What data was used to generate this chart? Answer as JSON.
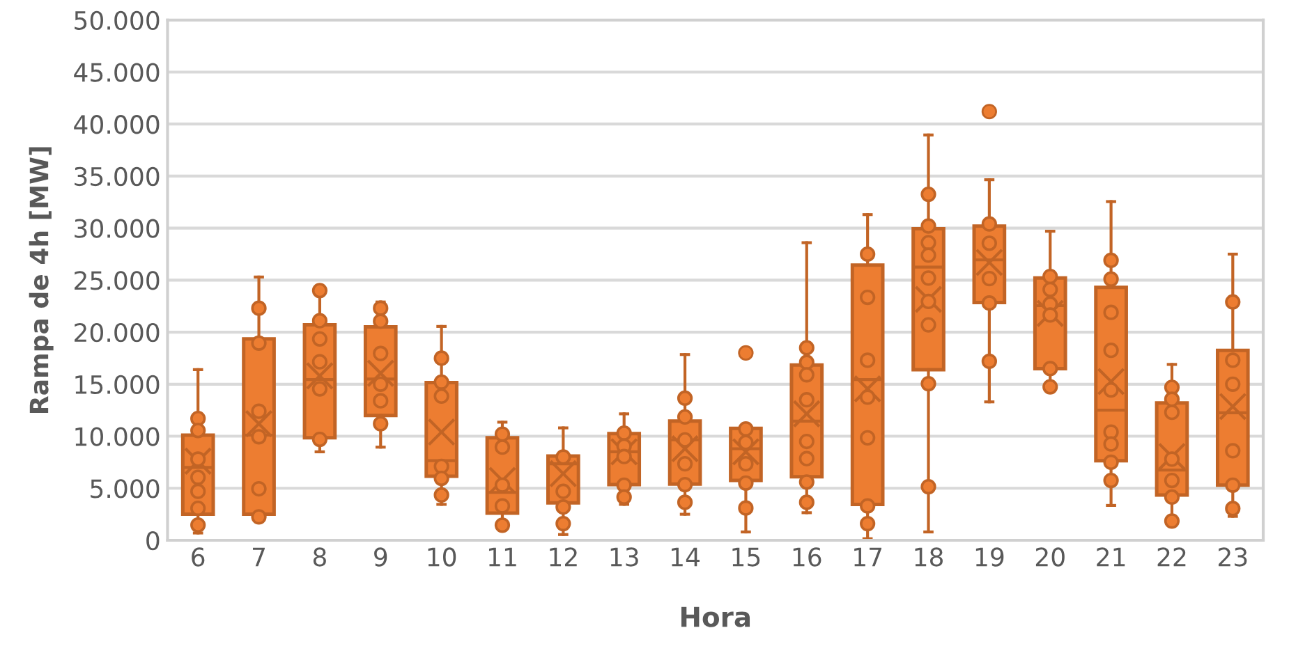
{
  "chart_data": {
    "type": "box",
    "xlabel": "Hora",
    "ylabel": "Rampa de 4h [MW]",
    "categories": [
      "6",
      "7",
      "8",
      "9",
      "10",
      "11",
      "12",
      "13",
      "14",
      "15",
      "16",
      "17",
      "18",
      "19",
      "20",
      "21",
      "22",
      "23"
    ],
    "ylim": [
      0,
      50000
    ],
    "yticks": [
      0,
      {
        "value": 5000,
        "label": "5.000"
      },
      {
        "value": 10000,
        "label": "10.000"
      },
      {
        "value": 15000,
        "label": "15.000"
      },
      {
        "value": 20000,
        "label": "20.000"
      },
      {
        "value": 25000,
        "label": "25.000"
      },
      {
        "value": 30000,
        "label": "30.000"
      },
      {
        "value": 35000,
        "label": "35.000"
      },
      {
        "value": 40000,
        "label": "40.000"
      },
      {
        "value": 45000,
        "label": "45.000"
      },
      {
        "value": 50000,
        "label": "50.000"
      }
    ],
    "grid": "y",
    "legend": false,
    "marker": "circle",
    "series": [
      {
        "color": "#ed7d31",
        "boxes": [
          {
            "low": 700,
            "q1": 2500,
            "median": 7000,
            "q3": 10100,
            "high": 16400,
            "mean": 7600
          },
          {
            "low": 2250,
            "q1": 2500,
            "median": 10100,
            "q3": 19350,
            "high": 25300,
            "mean": 11200
          },
          {
            "low": 8500,
            "q1": 9850,
            "median": 15450,
            "q3": 20700,
            "high": 24000,
            "mean": 15800
          },
          {
            "low": 8950,
            "q1": 12000,
            "median": 15500,
            "q3": 20500,
            "high": 22900,
            "mean": 16050
          },
          {
            "low": 3450,
            "q1": 6150,
            "median": 7650,
            "q3": 15150,
            "high": 20550,
            "mean": 10400
          },
          {
            "low": 1450,
            "q1": 2600,
            "median": 4600,
            "q3": 9850,
            "high": 11350,
            "mean": 5750
          },
          {
            "low": 550,
            "q1": 3600,
            "median": 7350,
            "q3": 8100,
            "high": 10800,
            "mean": 6400
          },
          {
            "low": 3450,
            "q1": 5350,
            "median": 8500,
            "q3": 10250,
            "high": 12150,
            "mean": 8500
          },
          {
            "low": 2500,
            "q1": 5400,
            "median": 9650,
            "q3": 11450,
            "high": 17850,
            "mean": 8800
          },
          {
            "low": 800,
            "q1": 5750,
            "median": 8800,
            "q3": 10750,
            "high": 10700,
            "mean": 8500,
            "outliers": [
              18000
            ]
          },
          {
            "low": 2650,
            "q1": 6100,
            "median": 11450,
            "q3": 16850,
            "high": 28600,
            "mean": 12150
          },
          {
            "low": 150,
            "q1": 3450,
            "median": 15450,
            "q3": 26450,
            "high": 31300,
            "mean": 14550
          },
          {
            "low": 800,
            "q1": 16400,
            "median": 26250,
            "q3": 29950,
            "high": 38950,
            "mean": 23150
          },
          {
            "low": 13300,
            "q1": 22850,
            "median": 26950,
            "q3": 30200,
            "high": 34650,
            "mean": 26700,
            "outliers": [
              41200
            ]
          },
          {
            "low": 14750,
            "q1": 16500,
            "median": 22550,
            "q3": 25200,
            "high": 29700,
            "mean": 21800
          },
          {
            "low": 3350,
            "q1": 7650,
            "median": 12500,
            "q3": 24300,
            "high": 32550,
            "mean": 15250
          },
          {
            "low": 1600,
            "q1": 4350,
            "median": 6750,
            "q3": 13200,
            "high": 16900,
            "mean": 8050
          },
          {
            "low": 2300,
            "q1": 5300,
            "median": 12250,
            "q3": 18250,
            "high": 27500,
            "mean": 12850
          }
        ]
      },
      {
        "type": "scatter",
        "color": "#ed7d31",
        "x": [
          "6",
          "6",
          "6",
          "6",
          "6",
          "6",
          "6",
          "7",
          "7",
          "7",
          "7",
          "7",
          "7",
          "8",
          "8",
          "8",
          "8",
          "8",
          "8",
          "9",
          "9",
          "9",
          "9",
          "9",
          "9",
          "10",
          "10",
          "10",
          "10",
          "10",
          "10",
          "11",
          "11",
          "11",
          "11",
          "11",
          "12",
          "12",
          "12",
          "12",
          "13",
          "13",
          "13",
          "13",
          "13",
          "14",
          "14",
          "14",
          "14",
          "14",
          "14",
          "15",
          "15",
          "15",
          "15",
          "15",
          "16",
          "16",
          "16",
          "16",
          "16",
          "16",
          "16",
          "16",
          "17",
          "17",
          "17",
          "17",
          "17",
          "17",
          "17",
          "18",
          "18",
          "18",
          "18",
          "18",
          "18",
          "18",
          "18",
          "18",
          "19",
          "19",
          "19",
          "19",
          "19",
          "19",
          "20",
          "20",
          "20",
          "20",
          "20",
          "20",
          "21",
          "21",
          "21",
          "21",
          "21",
          "21",
          "21",
          "21",
          "21",
          "22",
          "22",
          "22",
          "22",
          "22",
          "22",
          "22",
          "23",
          "23",
          "23",
          "23",
          "23",
          "23"
        ],
        "values": [
          11700,
          10550,
          7800,
          6050,
          4700,
          3070,
          1470,
          22300,
          18950,
          12400,
          9950,
          4950,
          2250,
          24000,
          21100,
          19350,
          17150,
          14550,
          9700,
          22300,
          21050,
          17950,
          15000,
          13400,
          11200,
          17500,
          15200,
          13850,
          7100,
          5950,
          4350,
          10200,
          8950,
          5300,
          3300,
          1450,
          8000,
          4700,
          3200,
          1600,
          10300,
          9050,
          8050,
          5300,
          4150,
          13650,
          11850,
          9650,
          7350,
          5350,
          3650,
          10700,
          9400,
          7350,
          5500,
          3100,
          18500,
          17100,
          15900,
          13500,
          9500,
          7850,
          5600,
          3650,
          27500,
          23350,
          17300,
          13750,
          9850,
          3300,
          1600,
          33250,
          30200,
          28600,
          27400,
          25200,
          22950,
          20700,
          15050,
          5150,
          30400,
          28550,
          null,
          25150,
          22800,
          17200,
          25350,
          24100,
          22700,
          21650,
          16500,
          14750,
          26900,
          25100,
          21900,
          18250,
          14450,
          10400,
          9250,
          7500,
          5750,
          14700,
          13550,
          12300,
          7800,
          5750,
          4150,
          1850,
          22900,
          17300,
          15000,
          8600,
          5300,
          3050
        ]
      }
    ]
  }
}
